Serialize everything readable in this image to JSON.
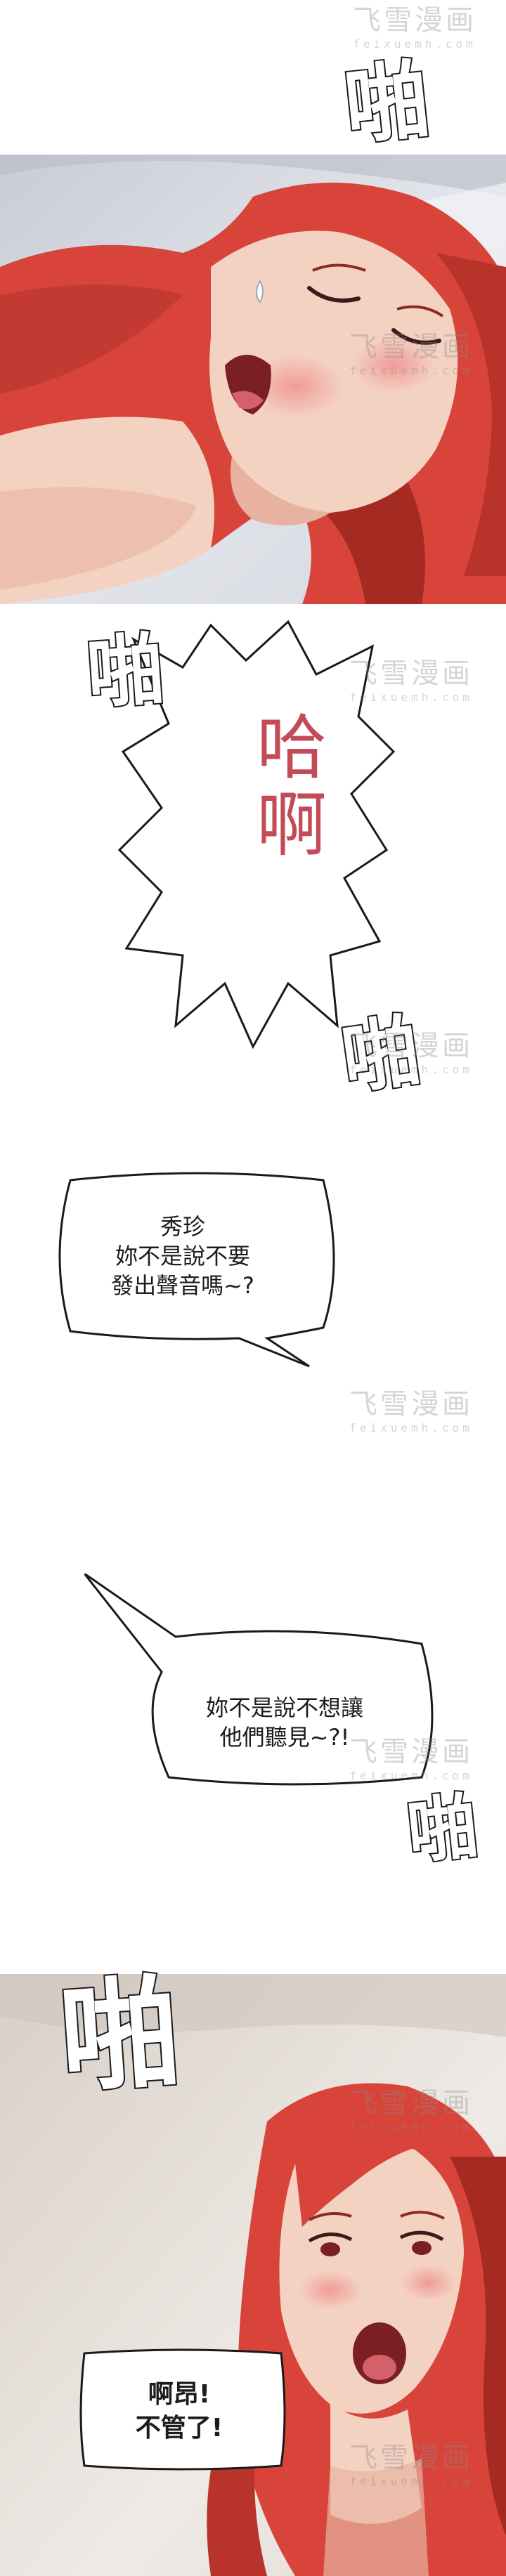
{
  "watermark": {
    "brand": "飞雪漫画",
    "site": "feixuemh.com"
  },
  "sound_effects": {
    "top": "啪",
    "middle": "啪",
    "after_moan": "啪",
    "after_bubble": "啪",
    "bottom": "啪"
  },
  "moan_text": "哈\n啊",
  "dialogue": {
    "bubble_1": "秀珍\n妳不是說不要\n發出聲音嗎~?",
    "bubble_2": "妳不是說不想讓\n他們聽見~?!",
    "bubble_3": "啊昂!\n不管了!"
  },
  "colors": {
    "hair": "#d8443a",
    "hair_dark": "#a52a22",
    "skin": "#f4d2c2",
    "skin_shadow": "#e7b3a0",
    "blush": "#ee8e8e",
    "moan_text": "#c34b58",
    "panel_bg_top": "#d9dbe2",
    "panel_bg_bottom": "#e8e4df"
  }
}
